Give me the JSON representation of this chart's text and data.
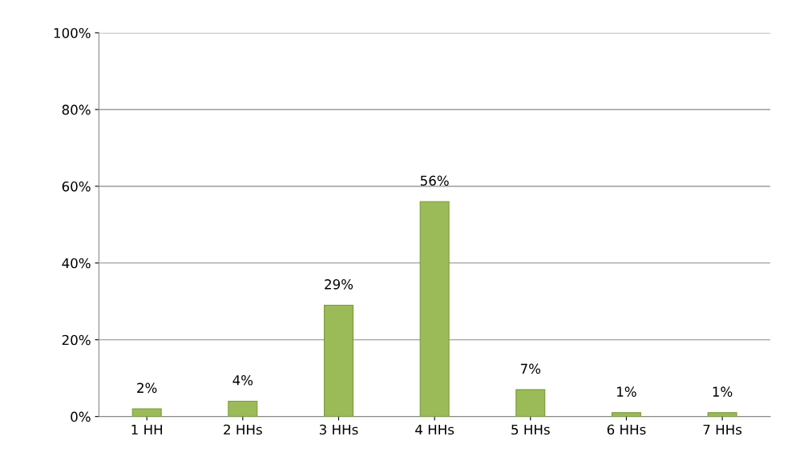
{
  "chart_data": {
    "type": "bar",
    "categories": [
      "1 HH",
      "2 HHs",
      "3 HHs",
      "4 HHs",
      "5 HHs",
      "6 HHs",
      "7 HHs"
    ],
    "values": [
      2,
      4,
      29,
      56,
      7,
      1,
      1
    ],
    "value_labels": [
      "2%",
      "4%",
      "29%",
      "56%",
      "7%",
      "1%",
      "1%"
    ],
    "color": "#9bbb59",
    "ylim": [
      0,
      100
    ],
    "yticks": [
      {
        "value": 0,
        "label": "0%"
      },
      {
        "value": 20,
        "label": "20%"
      },
      {
        "value": 40,
        "label": "40%"
      },
      {
        "value": 60,
        "label": "60%"
      },
      {
        "value": 80,
        "label": "80%"
      },
      {
        "value": 100,
        "label": "100%"
      }
    ],
    "grid": "y",
    "legend": false
  }
}
